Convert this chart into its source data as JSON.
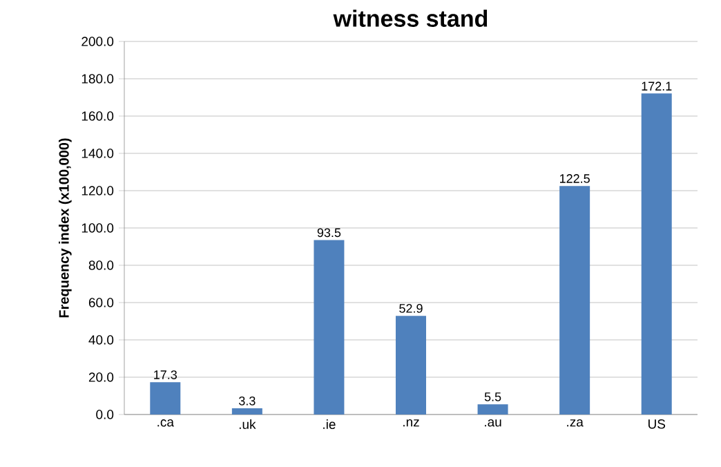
{
  "chart_data": {
    "type": "bar",
    "title": "witness stand",
    "ylabel": "Frequency index (x100,000)",
    "categories": [
      ".ca",
      ".uk",
      ".ie",
      ".nz",
      ".au",
      ".za",
      "US"
    ],
    "values": [
      17.3,
      3.3,
      93.5,
      52.9,
      5.5,
      122.5,
      172.1
    ],
    "color": "#4f81bd",
    "ylim": [
      0,
      200
    ],
    "yticks": [
      {
        "value": 0,
        "label": "0.0"
      },
      {
        "value": 20,
        "label": "20.0"
      },
      {
        "value": 40,
        "label": "40.0"
      },
      {
        "value": 60,
        "label": "60.0"
      },
      {
        "value": 80,
        "label": "80.0"
      },
      {
        "value": 100,
        "label": "100.0"
      },
      {
        "value": 120,
        "label": "120.0"
      },
      {
        "value": 140,
        "label": "140.0"
      },
      {
        "value": 160,
        "label": "160.0"
      },
      {
        "value": 180,
        "label": "180.0"
      },
      {
        "value": 200,
        "label": "200.0"
      }
    ],
    "grid": "y",
    "data_labels": true
  }
}
